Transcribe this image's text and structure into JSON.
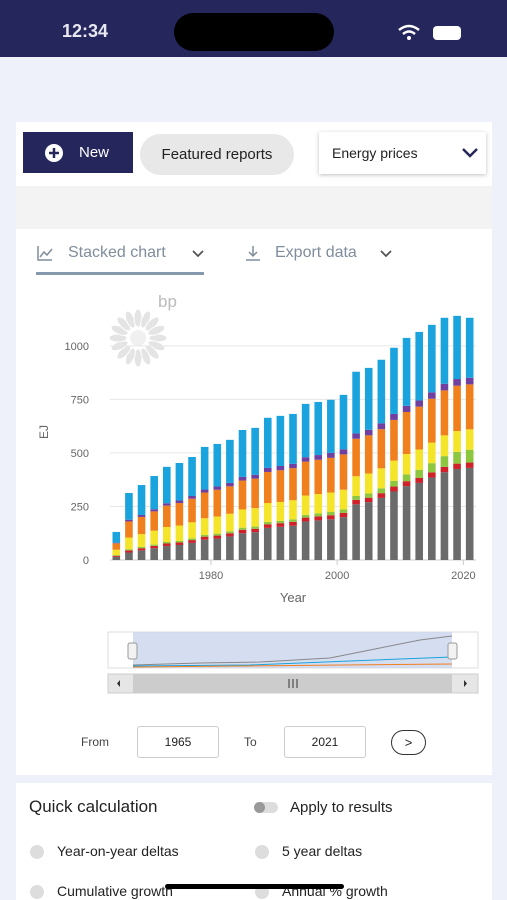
{
  "status_bar": {
    "time": "12:34"
  },
  "toolbar": {
    "new_button": "New",
    "featured_button": "Featured reports",
    "dropdown": "Energy prices"
  },
  "tabs": {
    "chart_tab": "Stacked chart",
    "export_tab": "Export data"
  },
  "logo": "bp",
  "chart_data": {
    "type": "stacked_bar",
    "x_label": "Year",
    "y_label": "EJ",
    "x": [
      1965,
      1967,
      1969,
      1971,
      1973,
      1975,
      1977,
      1979,
      1981,
      1983,
      1985,
      1987,
      1989,
      1991,
      1993,
      1995,
      1997,
      1999,
      2001,
      2003,
      2005,
      2007,
      2009,
      2011,
      2013,
      2015,
      2017,
      2019,
      2021
    ],
    "series": [
      {
        "color": "#6b6b6b",
        "values": [
          15,
          35,
          45,
          55,
          65,
          70,
          80,
          95,
          100,
          110,
          125,
          130,
          150,
          155,
          160,
          180,
          185,
          190,
          200,
          260,
          270,
          290,
          320,
          345,
          360,
          385,
          410,
          425,
          430
        ]
      },
      {
        "color": "#d0202a",
        "values": [
          5,
          10,
          10,
          11,
          12,
          12,
          13,
          14,
          14,
          15,
          16,
          16,
          17,
          17,
          18,
          18,
          19,
          19,
          20,
          21,
          21,
          22,
          23,
          23,
          24,
          24,
          25,
          25,
          25
        ]
      },
      {
        "color": "#8dc63f",
        "values": [
          3,
          5,
          6,
          6,
          7,
          7,
          8,
          8,
          9,
          9,
          10,
          10,
          11,
          11,
          12,
          13,
          14,
          15,
          16,
          18,
          20,
          23,
          27,
          32,
          37,
          43,
          50,
          55,
          60
        ]
      },
      {
        "color": "#f5e52a",
        "values": [
          25,
          55,
          60,
          65,
          70,
          72,
          75,
          78,
          80,
          82,
          85,
          86,
          88,
          88,
          89,
          90,
          90,
          91,
          92,
          92,
          93,
          93,
          94,
          95,
          95,
          96,
          97,
          97,
          95
        ]
      },
      {
        "color": "#f07f1e",
        "values": [
          30,
          75,
          80,
          90,
          100,
          105,
          110,
          120,
          125,
          128,
          135,
          138,
          145,
          148,
          150,
          158,
          160,
          162,
          165,
          175,
          178,
          183,
          190,
          196,
          200,
          205,
          210,
          212,
          210
        ]
      },
      {
        "color": "#7040a0",
        "values": [
          3,
          8,
          9,
          10,
          11,
          12,
          13,
          14,
          15,
          16,
          17,
          18,
          19,
          20,
          20,
          21,
          22,
          23,
          24,
          25,
          26,
          27,
          28,
          29,
          29,
          30,
          31,
          31,
          31
        ]
      },
      {
        "color": "#1aa3dc",
        "values": [
          50,
          125,
          140,
          155,
          170,
          175,
          182,
          199,
          199,
          201,
          219,
          219,
          234,
          234,
          233,
          249,
          248,
          248,
          254,
          288,
          289,
          297,
          309,
          317,
          320,
          315,
          308,
          295,
          280
        ]
      }
    ],
    "xlim": [
      1964,
      2022
    ],
    "xticks": [
      1980,
      2000,
      2020
    ],
    "ylim": [
      0,
      1200
    ],
    "yticks": [
      0,
      250,
      500,
      750,
      1000
    ],
    "grid": true
  },
  "range": {
    "from_label": "From",
    "from_value": "1965",
    "to_label": "To",
    "to_value": "2021",
    "go_button": ">"
  },
  "quick_calc": {
    "title": "Quick calculation",
    "apply_toggle": "Apply to results",
    "options": [
      "Year-on-year deltas",
      "5 year deltas",
      "Cumulative growth",
      "Annual % growth"
    ]
  }
}
